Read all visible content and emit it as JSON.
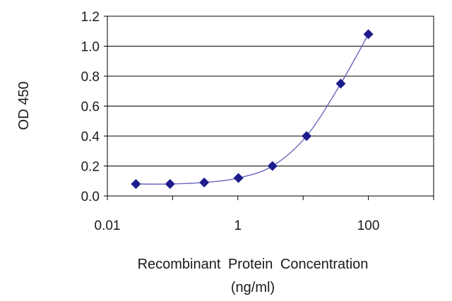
{
  "chart_data": {
    "type": "scatter",
    "title": "",
    "xlabel": "Recombinant Protein Concentration",
    "xlabel_unit": "(ng/ml)",
    "ylabel": "OD 450",
    "x_scale": "log",
    "xlim": [
      0.01,
      1000
    ],
    "ylim": [
      0,
      1.2
    ],
    "x_ticks": [
      0.01,
      1,
      100
    ],
    "x_tick_labels": [
      "0.01",
      "1",
      "100"
    ],
    "y_ticks": [
      0,
      0.2,
      0.4,
      0.6,
      0.8,
      1.0,
      1.2
    ],
    "y_tick_labels": [
      "0.0",
      "0.2",
      "0.4",
      "0.6",
      "0.8",
      "1.0",
      "1.2"
    ],
    "grid": "horizontal",
    "legend": "none",
    "marker": "diamond",
    "series_color": "#1c1c8c",
    "line_color": "#5a5ab8",
    "series": [
      {
        "x": [
          0.0274,
          0.0914,
          0.305,
          1.02,
          3.39,
          11.3,
          37.7,
          100
        ],
        "y": [
          0.08,
          0.08,
          0.09,
          0.12,
          0.2,
          0.4,
          0.75,
          1.08
        ]
      }
    ]
  }
}
